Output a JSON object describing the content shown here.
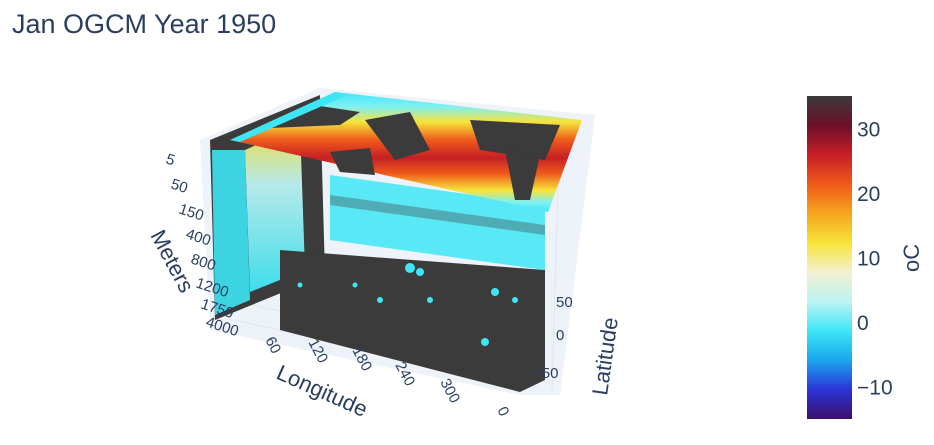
{
  "chart_data": {
    "type": "volume-3d",
    "title": "Jan OGCM Year 1950",
    "axes": {
      "z": {
        "label": "Meters",
        "ticks": [
          "5",
          "50",
          "150",
          "400",
          "800",
          "1200",
          "1750",
          "4000"
        ]
      },
      "x": {
        "label": "Longitude",
        "ticks": [
          "60",
          "120",
          "180",
          "240",
          "300",
          "0"
        ]
      },
      "y": {
        "label": "Latitude",
        "ticks": [
          "50",
          "0",
          "−50"
        ]
      }
    },
    "colorbar": {
      "title": "oC",
      "range": [
        -15,
        35
      ],
      "ticks": [
        {
          "value": 30,
          "label": "30"
        },
        {
          "value": 20,
          "label": "20"
        },
        {
          "value": 10,
          "label": "10"
        },
        {
          "value": 0,
          "label": "0"
        },
        {
          "value": -10,
          "label": "−10"
        }
      ],
      "colors": [
        "#3a0f6b",
        "#2b34d6",
        "#1aa6ee",
        "#3ee6f5",
        "#bdf3f3",
        "#f3f0d0",
        "#f7e43a",
        "#f6a51d",
        "#ef5a1a",
        "#c61f26",
        "#6e0f2a",
        "#3a3a3a"
      ]
    },
    "land_color": "#3b3b3b"
  }
}
